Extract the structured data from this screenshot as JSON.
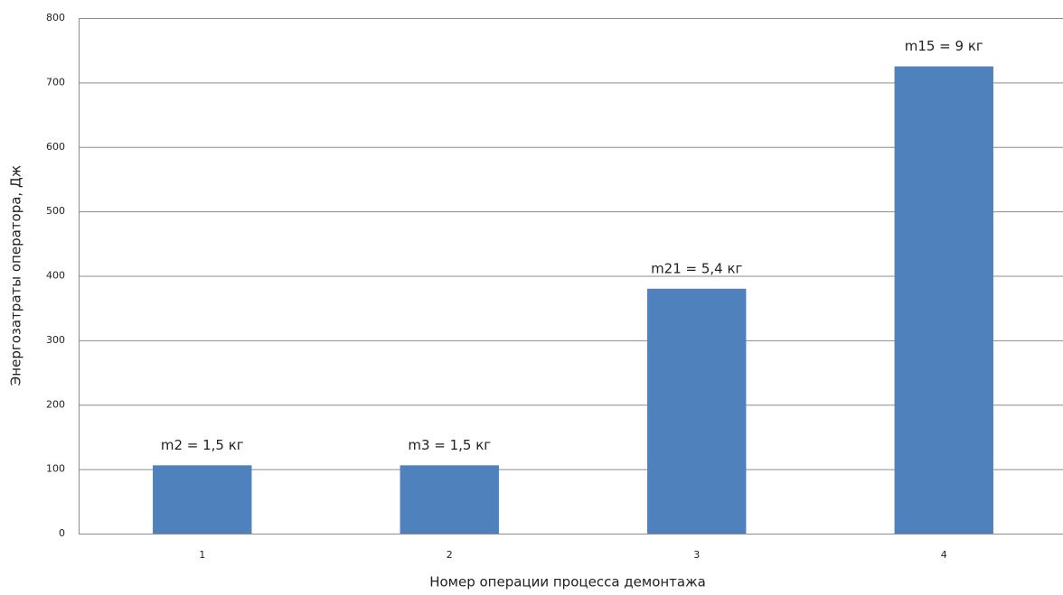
{
  "chart_data": {
    "type": "bar",
    "categories": [
      "1",
      "2",
      "3",
      "4"
    ],
    "values": [
      106,
      106,
      380,
      725
    ],
    "annotations": [
      "m2 = 1,5 кг",
      "m3 = 1,5 кг",
      "m21 = 5,4 кг",
      "m15 = 9 кг"
    ],
    "color": "#4f81bd",
    "xlabel": "Номер операции процесса демонтажа",
    "ylabel": "Энергозатраты оператора, Дж",
    "ylim": [
      0,
      800
    ],
    "yticks": [
      0,
      100,
      200,
      300,
      400,
      500,
      600,
      700,
      800
    ],
    "grid": true
  }
}
